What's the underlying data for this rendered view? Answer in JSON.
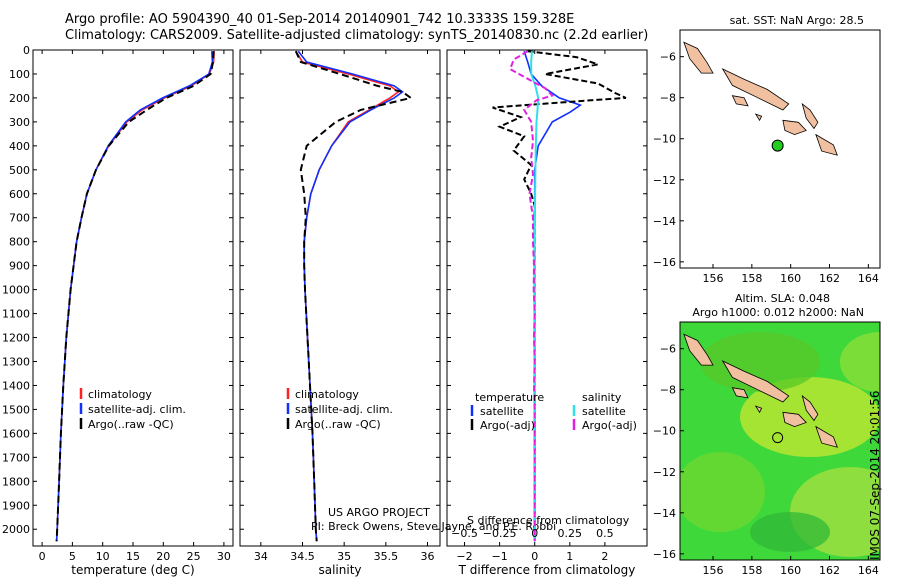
{
  "title_line1": "Argo profile: AO 5904390_40 01-Sep-2014 20140901_742 10.3333S 159.328E",
  "title_line2": "Climatology: CARS2009. Satellite-adjusted climatology: synTS_20140830.nc (2.2d earlier)",
  "colors": {
    "climatology": "#ff2020",
    "satellite": "#1030ff",
    "argo": "#000000",
    "sat_salinity": "#30e0e8",
    "argo_salinity": "#e020e0",
    "land": "#f0c0a0",
    "sla_bg": "#40e040"
  },
  "chart_data": [
    {
      "type": "line",
      "name": "temperature",
      "xlabel": "temperature (deg C)",
      "xlim": [
        -1.5,
        31.5
      ],
      "ylim": [
        2070,
        0
      ],
      "xticks": [
        0,
        5,
        10,
        15,
        20,
        25,
        30
      ],
      "yticks": [
        0,
        100,
        200,
        300,
        400,
        500,
        600,
        700,
        800,
        900,
        1000,
        1100,
        1200,
        1300,
        1400,
        1500,
        1600,
        1700,
        1800,
        1900,
        2000
      ],
      "legend": [
        "climatology",
        "satellite-adj. clim.",
        "Argo(..raw -QC)"
      ],
      "depth": [
        5,
        50,
        100,
        150,
        200,
        250,
        300,
        400,
        500,
        600,
        700,
        800,
        900,
        1000,
        1200,
        1400,
        1600,
        1800,
        2000,
        2050
      ],
      "series": [
        {
          "name": "climatology",
          "values": [
            28.4,
            28.3,
            27.6,
            24.6,
            20.2,
            16.5,
            14.0,
            11.0,
            8.9,
            7.4,
            6.5,
            5.7,
            5.2,
            4.7,
            4.0,
            3.5,
            3.1,
            2.8,
            2.5,
            2.4
          ]
        },
        {
          "name": "satellite-adj. clim.",
          "values": [
            28.0,
            28.1,
            27.5,
            24.3,
            19.9,
            16.2,
            13.8,
            10.9,
            8.9,
            7.4,
            6.5,
            5.7,
            5.2,
            4.7,
            4.0,
            3.5,
            3.1,
            2.8,
            2.5,
            2.4
          ]
        },
        {
          "name": "Argo(..raw -QC)",
          "values": [
            28.3,
            28.2,
            27.8,
            25.0,
            20.5,
            17.3,
            14.3,
            11.0,
            8.9,
            7.4,
            6.5,
            5.7,
            5.2,
            4.7,
            4.0,
            3.5,
            3.1,
            2.8,
            2.5,
            2.4
          ]
        }
      ]
    },
    {
      "type": "line",
      "name": "salinity",
      "xlabel": "salinity",
      "xlim": [
        33.75,
        36.15
      ],
      "ylim": [
        2070,
        0
      ],
      "xticks": [
        34,
        34.5,
        35,
        35.5,
        36
      ],
      "legend": [
        "climatology",
        "satellite-adj. clim.",
        "Argo(..raw -QC)"
      ],
      "depth": [
        5,
        50,
        100,
        150,
        175,
        200,
        250,
        300,
        400,
        500,
        600,
        700,
        800,
        900,
        1000,
        1200,
        1400,
        1600,
        1800,
        2000,
        2050
      ],
      "series": [
        {
          "name": "climatology",
          "values": [
            34.42,
            34.5,
            35.05,
            35.55,
            35.65,
            35.55,
            35.3,
            35.05,
            34.85,
            34.7,
            34.6,
            34.55,
            34.52,
            34.52,
            34.53,
            34.56,
            34.59,
            34.62,
            34.64,
            34.66,
            34.67
          ]
        },
        {
          "name": "satellite-adj. clim.",
          "values": [
            34.45,
            34.55,
            35.1,
            35.6,
            35.7,
            35.6,
            35.32,
            35.07,
            34.85,
            34.7,
            34.6,
            34.55,
            34.52,
            34.52,
            34.53,
            34.56,
            34.59,
            34.62,
            34.64,
            34.66,
            34.67
          ]
        },
        {
          "name": "Argo(..raw -QC)",
          "values": [
            34.42,
            34.48,
            34.95,
            35.4,
            35.7,
            35.8,
            35.2,
            34.9,
            34.55,
            34.48,
            34.52,
            34.54,
            34.52,
            34.52,
            34.53,
            34.56,
            34.59,
            34.62,
            34.64,
            34.66,
            34.67
          ]
        }
      ],
      "annotation_line1": "US ARGO PROJECT",
      "annotation_line2": "PI: Breck Owens, Steve Jayne, and P.E. Robbi"
    },
    {
      "type": "line",
      "name": "differences",
      "xlabel": "T difference from climatology",
      "xlabel_top": "S difference from climatology",
      "xlim": [
        -2.5,
        3.2
      ],
      "ylim": [
        2070,
        0
      ],
      "xticks": [
        -2,
        -1,
        0,
        1,
        2
      ],
      "xticks_salinity": [
        "-0.5",
        "-0.25",
        "0",
        "0.25",
        "0.5"
      ],
      "legend_temperature_title": "temperature",
      "legend_salinity_title": "salinity",
      "legend": [
        "satellite",
        "Argo(-adj)",
        "satellite",
        "Argo(-adj)"
      ],
      "series": [
        {
          "name": "temperature satellite",
          "depth": [
            5,
            50,
            100,
            150,
            200,
            230,
            260,
            300,
            400,
            500,
            600,
            700,
            800,
            1000,
            1500,
            2050
          ],
          "values": [
            -0.3,
            -0.2,
            -0.1,
            0.2,
            0.7,
            1.3,
            1.0,
            0.5,
            0.1,
            0.0,
            0.0,
            0.0,
            0.0,
            0.0,
            0.0,
            0.0
          ]
        },
        {
          "name": "temperature Argo(-adj)",
          "depth": [
            5,
            30,
            60,
            100,
            140,
            180,
            200,
            210,
            240,
            280,
            320,
            360,
            420,
            480,
            540,
            600,
            650,
            700,
            800,
            1000,
            1500,
            2050
          ],
          "values": [
            -0.2,
            1.2,
            1.8,
            0.3,
            1.8,
            2.3,
            2.6,
            1.6,
            -1.2,
            -0.4,
            -1.0,
            -0.3,
            -0.6,
            -0.1,
            -0.3,
            -0.1,
            0.0,
            0.0,
            0.0,
            0.0,
            0.0,
            0.0
          ]
        },
        {
          "name": "salinity satellite",
          "depth": [
            5,
            50,
            100,
            150,
            200,
            250,
            300,
            400,
            500,
            600,
            800,
            1000,
            1500,
            2050
          ],
          "values": [
            -0.08,
            -0.1,
            -0.1,
            0.02,
            0.1,
            0.08,
            0.05,
            0.03,
            0.02,
            0.01,
            0.0,
            0.0,
            0.0,
            0.0
          ]
        },
        {
          "name": "salinity Argo(-adj)",
          "depth": [
            5,
            40,
            80,
            120,
            160,
            190,
            210,
            250,
            300,
            380,
            450,
            520,
            600,
            700,
            800,
            900,
            1000,
            1100,
            1200,
            1300,
            1400,
            1500,
            1600,
            1800,
            2050
          ],
          "values": [
            -0.2,
            -0.6,
            -0.7,
            -0.2,
            0.3,
            0.5,
            0.05,
            -0.3,
            -0.1,
            -0.05,
            -0.1,
            -0.05,
            -0.15,
            -0.05,
            -0.05,
            -0.02,
            -0.03,
            0.0,
            -0.02,
            0.0,
            -0.02,
            0.0,
            0.0,
            0.0,
            0.0
          ]
        }
      ]
    },
    {
      "type": "scatter",
      "name": "sst-map",
      "title": "sat. SST: NaN Argo: 28.5",
      "xlim": [
        154.3,
        164.6
      ],
      "ylim": [
        -16.3,
        -4.7
      ],
      "xticks": [
        156,
        158,
        160,
        162,
        164
      ],
      "yticks": [
        -6,
        -8,
        -10,
        -12,
        -14,
        -16
      ],
      "profile_location": {
        "lon": 159.328,
        "lat": -10.3333
      }
    },
    {
      "type": "heatmap",
      "name": "sla-map",
      "title_line1": "Altim. SLA: 0.048",
      "title_line2": "Argo h1000: 0.012 h2000: NaN",
      "xlim": [
        154.3,
        164.6
      ],
      "ylim": [
        -16.3,
        -4.7
      ],
      "xticks": [
        156,
        158,
        160,
        162,
        164
      ],
      "yticks": [
        -6,
        -8,
        -10,
        -12,
        -14,
        -16
      ],
      "profile_location": {
        "lon": 159.328,
        "lat": -10.3333
      }
    }
  ],
  "stamp": "IMOS 07-Sep-2014 20:01:56"
}
